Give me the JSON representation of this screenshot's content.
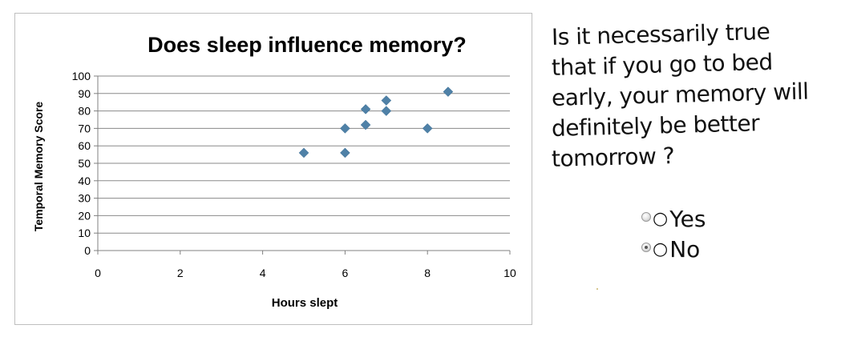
{
  "chart_data": {
    "type": "scatter",
    "title": "Does sleep influence memory?",
    "xlabel": "Hours slept",
    "ylabel": "Temporal Memory Score",
    "xlim": [
      0,
      10
    ],
    "ylim": [
      0,
      100
    ],
    "x_ticks": [
      0,
      2,
      4,
      6,
      8,
      10
    ],
    "y_ticks": [
      0,
      10,
      20,
      30,
      40,
      50,
      60,
      70,
      80,
      90,
      100
    ],
    "grid": "horizontal",
    "legend": "none",
    "marker": "diamond",
    "marker_color": "#4f81a7",
    "points": [
      {
        "x": 5,
        "y": 56
      },
      {
        "x": 6,
        "y": 56
      },
      {
        "x": 6,
        "y": 70
      },
      {
        "x": 6.5,
        "y": 72
      },
      {
        "x": 6.5,
        "y": 81
      },
      {
        "x": 7,
        "y": 80
      },
      {
        "x": 7,
        "y": 86
      },
      {
        "x": 8,
        "y": 70
      },
      {
        "x": 8.5,
        "y": 91
      }
    ]
  },
  "question": {
    "lines": [
      "Is it necessarily true",
      "that if you go to bed",
      "early, your memory will",
      "definitely be better",
      "tomorrow ?"
    ],
    "options": [
      {
        "label": "Yes",
        "checked": false
      },
      {
        "label": "No",
        "checked": true
      }
    ]
  }
}
